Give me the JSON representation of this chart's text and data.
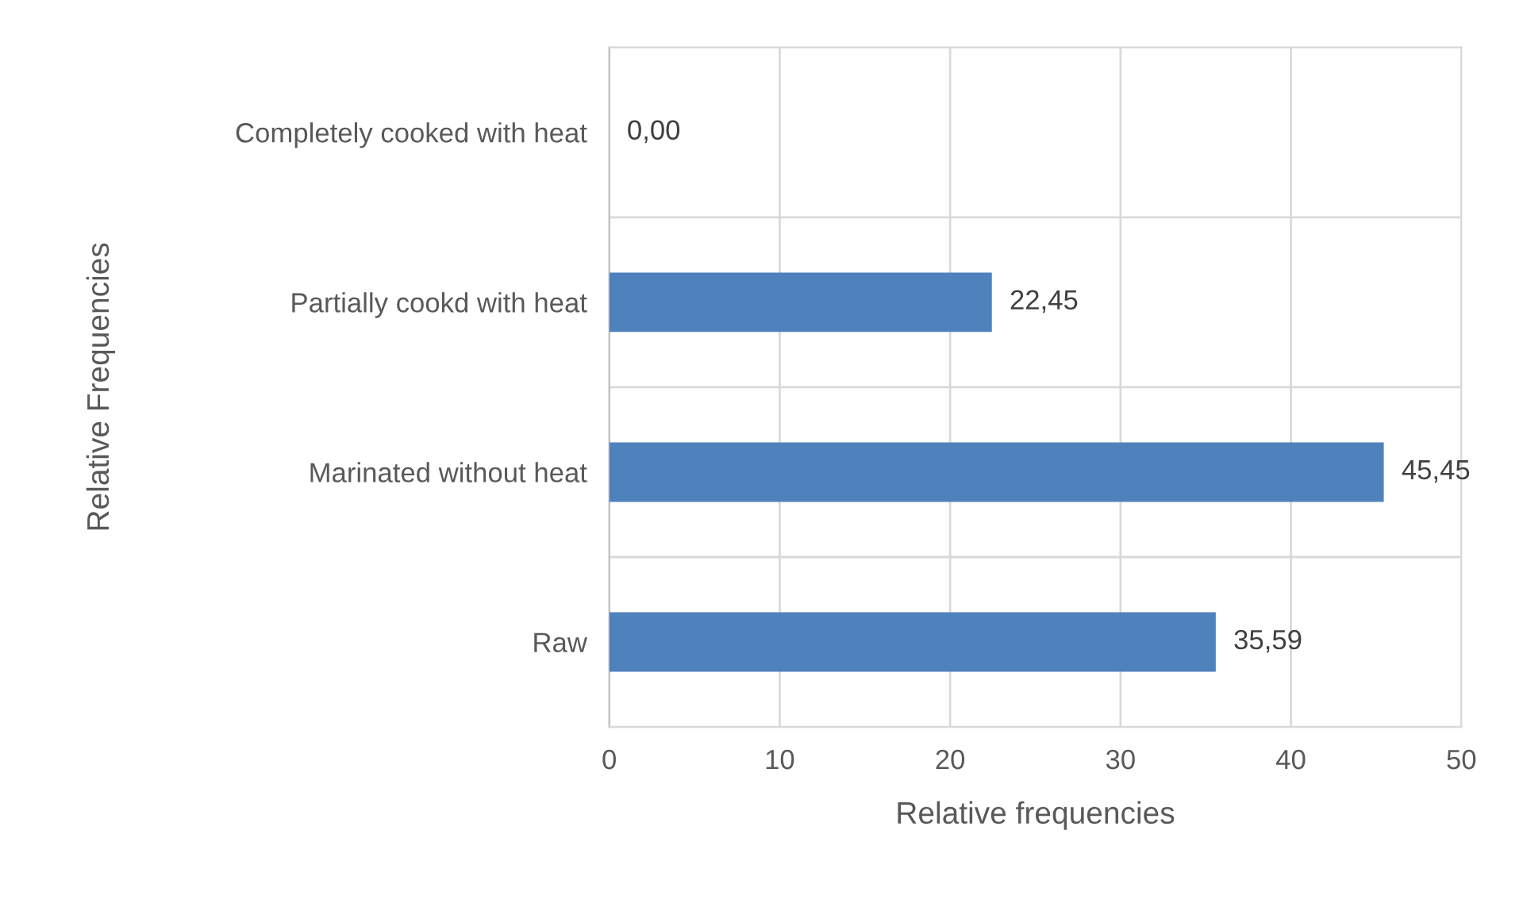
{
  "chart_data": {
    "type": "bar",
    "orientation": "horizontal",
    "categories": [
      "Completely cooked with heat",
      "Partially cookd with heat",
      "Marinated without heat",
      "Raw"
    ],
    "values": [
      0,
      22.45,
      45.45,
      35.59
    ],
    "value_labels": [
      "0,00",
      "22,45",
      "45,45",
      "35,59"
    ],
    "color": "#4f81bd",
    "xlim": [
      0,
      50
    ],
    "xticks": [
      0,
      10,
      20,
      30,
      40,
      50
    ],
    "xlabel": "Relative frequencies",
    "ylabel": "Relative Frequencies",
    "grid": true
  }
}
